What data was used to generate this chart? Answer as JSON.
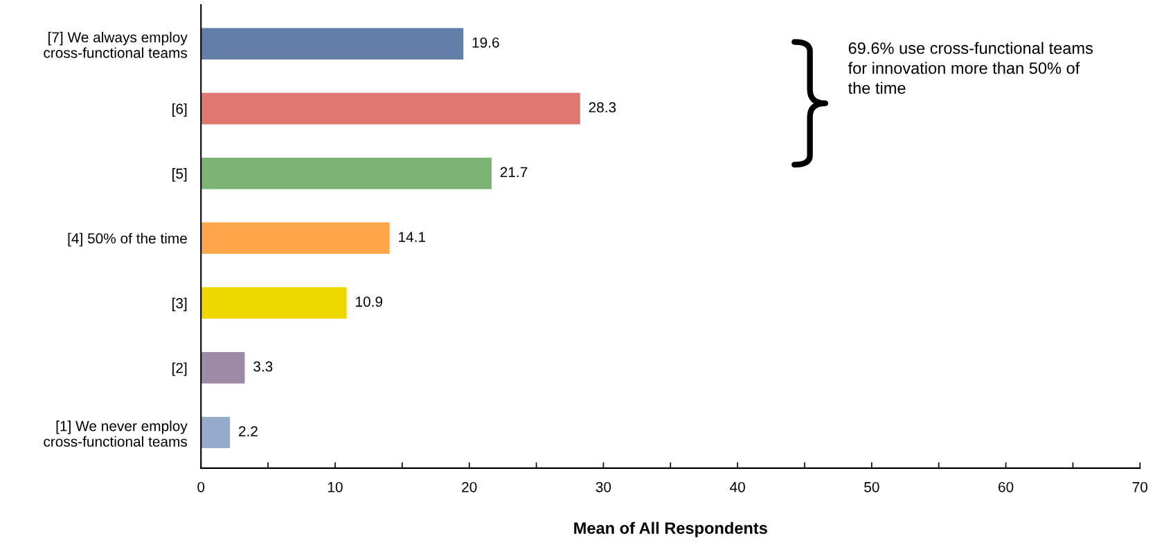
{
  "chart_data": {
    "type": "bar",
    "orientation": "horizontal",
    "xlabel": "Mean of All Respondents",
    "categories": [
      "[7] We always employ\ncross-functional teams",
      "[6]",
      "[5]",
      "[4] 50% of the time",
      "[3]",
      "[2]",
      "[1] We never employ\ncross-functional teams"
    ],
    "values": [
      19.6,
      28.3,
      21.7,
      14.1,
      10.9,
      3.3,
      2.2
    ],
    "colors": [
      "#637fa8",
      "#e07872",
      "#7db374",
      "#ffa64a",
      "#eed800",
      "#9e8aa6",
      "#94abc9"
    ],
    "data_labels": true,
    "xlim": [
      0,
      70
    ],
    "xticks": [
      0,
      {
        "value": 5,
        "label": null
      },
      10,
      {
        "value": 15,
        "label": null
      },
      20,
      {
        "value": 25,
        "label": null
      },
      30,
      {
        "value": 35,
        "label": null
      },
      40,
      {
        "value": 45,
        "label": null
      },
      50,
      {
        "value": 55,
        "label": null
      },
      60,
      {
        "value": 65,
        "label": null
      },
      70
    ],
    "grid": false,
    "legend": false,
    "annotations": [
      "69.6% use cross-functional teams\nfor innovation more than 50% of\nthe time"
    ]
  }
}
